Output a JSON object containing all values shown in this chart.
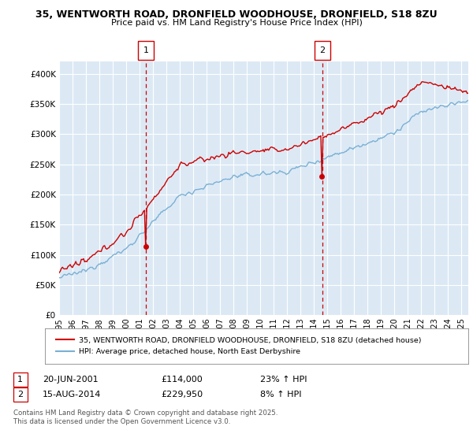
{
  "title_line1": "35, WENTWORTH ROAD, DRONFIELD WOODHOUSE, DRONFIELD, S18 8ZU",
  "title_line2": "Price paid vs. HM Land Registry's House Price Index (HPI)",
  "bg_color": "#dce9f5",
  "grid_color": "#ffffff",
  "red_line_color": "#cc0000",
  "blue_line_color": "#7ab0d4",
  "ylabel_ticks": [
    "£0",
    "£50K",
    "£100K",
    "£150K",
    "£200K",
    "£250K",
    "£300K",
    "£350K",
    "£400K"
  ],
  "ytick_values": [
    0,
    50000,
    100000,
    150000,
    200000,
    250000,
    300000,
    350000,
    400000
  ],
  "ylim": [
    0,
    420000
  ],
  "year_start": 1995,
  "year_end": 2025,
  "marker1_year": 2001.47,
  "marker1_price_val": 114000,
  "marker1_date": "20-JUN-2001",
  "marker1_price": "£114,000",
  "marker1_pct": "23% ↑ HPI",
  "marker2_year": 2014.62,
  "marker2_price_val": 229950,
  "marker2_date": "15-AUG-2014",
  "marker2_price": "£229,950",
  "marker2_pct": "8% ↑ HPI",
  "legend_label1": "35, WENTWORTH ROAD, DRONFIELD WOODHOUSE, DRONFIELD, S18 8ZU (detached house)",
  "legend_label2": "HPI: Average price, detached house, North East Derbyshire",
  "footer1": "Contains HM Land Registry data © Crown copyright and database right 2025.",
  "footer2": "This data is licensed under the Open Government Licence v3.0."
}
